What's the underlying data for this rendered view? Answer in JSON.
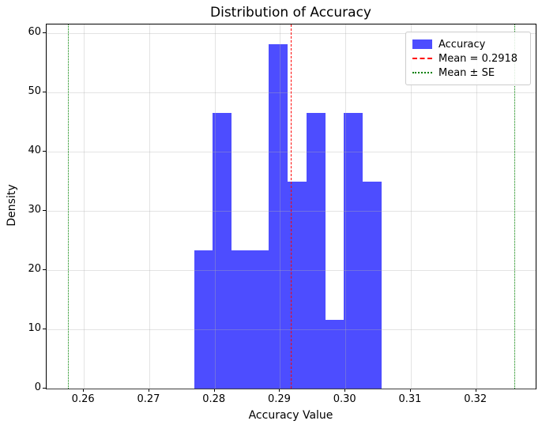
{
  "chart_data": {
    "type": "bar",
    "subtype": "histogram",
    "title": "Distribution of Accuracy",
    "xlabel": "Accuracy Value",
    "ylabel": "Density",
    "xlim": [
      0.2543,
      0.3291
    ],
    "ylim": [
      0,
      61.5
    ],
    "xticks": [
      0.26,
      0.27,
      0.28,
      0.29,
      0.3,
      0.31,
      0.32
    ],
    "xtick_labels": [
      "0.26",
      "0.27",
      "0.28",
      "0.29",
      "0.30",
      "0.31",
      "0.32"
    ],
    "yticks": [
      0,
      10,
      20,
      30,
      40,
      50,
      60
    ],
    "ytick_labels": [
      "0",
      "10",
      "20",
      "30",
      "40",
      "50",
      "60"
    ],
    "grid": true,
    "bins": {
      "start": 0.27684,
      "width": 0.002867,
      "edges": [
        0.27684,
        0.27971,
        0.28257,
        0.28544,
        0.28831,
        0.29118,
        0.29404,
        0.29691,
        0.29978,
        0.30264,
        0.30551
      ],
      "densities": [
        23.3,
        46.5,
        23.3,
        23.3,
        58.1,
        34.9,
        46.5,
        11.6,
        46.5,
        34.9
      ]
    },
    "style": {
      "bar_color": "#0000ff",
      "bar_alpha": 0.7,
      "grid_color": "#b0b0b0",
      "spine_color": "#000000"
    },
    "mean_line": {
      "x": 0.2918,
      "color": "#ff0000",
      "line_style": "dashed",
      "label": "Mean = 0.2918"
    },
    "se_lines": {
      "x_values": [
        0.2577,
        0.3259
      ],
      "color": "#008000",
      "line_style": "dotted",
      "label": "Mean ± SE"
    },
    "legend": {
      "position": "upper right",
      "items": [
        {
          "label": "Accuracy",
          "swatch": "patch",
          "color": "#0000ff",
          "alpha": 0.7
        },
        {
          "label": "Mean = 0.2918",
          "swatch": "dashed",
          "color": "#ff0000"
        },
        {
          "label": "Mean ± SE",
          "swatch": "dotted",
          "color": "#008000"
        }
      ]
    }
  }
}
